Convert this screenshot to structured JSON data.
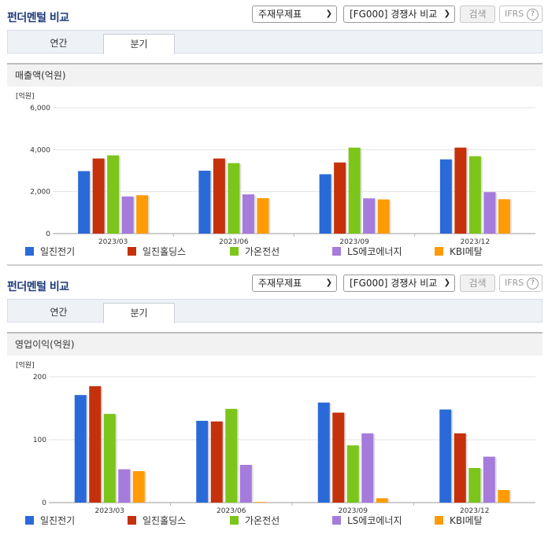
{
  "panels": [
    {
      "header": {
        "title": "펀더멘털 비교",
        "statement_select": "주재무제표",
        "group_select": "[FG000] 경쟁사 비교",
        "search_label": "검색",
        "ifrs_label": "IFRS",
        "help_label": "?"
      },
      "tabs": [
        {
          "label": "연간"
        },
        {
          "label": "분기"
        }
      ],
      "active_tab": "분기",
      "metric_title": "매출액(억원)",
      "unit_label": "[억원]",
      "chart_data": {
        "type": "bar",
        "title": "매출액(억원)",
        "categories": [
          "2023/03",
          "2023/06",
          "2023/09",
          "2023/12"
        ],
        "ylim": [
          0,
          6000
        ],
        "yticks": [
          "0",
          "2,000",
          "4,000",
          "6,000"
        ],
        "ytick_values": [
          0,
          2000,
          4000,
          6000
        ],
        "grid": true,
        "legend_position": "bottom",
        "series": [
          {
            "name": "일진전기",
            "color": "#2a6ad8",
            "values": [
              2980,
              3000,
              2830,
              3540
            ]
          },
          {
            "name": "일진홀딩스",
            "color": "#c4310b",
            "values": [
              3580,
              3580,
              3390,
              4100
            ]
          },
          {
            "name": "가온전선",
            "color": "#7cc51a",
            "values": [
              3730,
              3360,
              4100,
              3690
            ]
          },
          {
            "name": "LS에코에너지",
            "color": "#a57bdc",
            "values": [
              1770,
              1870,
              1680,
              1980
            ]
          },
          {
            "name": "KBI메탈",
            "color": "#ff9b05",
            "values": [
              1830,
              1690,
              1630,
              1640
            ]
          }
        ]
      }
    },
    {
      "header": {
        "title": "펀더멘털 비교",
        "statement_select": "주재무제표",
        "group_select": "[FG000] 경쟁사 비교",
        "search_label": "검색",
        "ifrs_label": "IFRS",
        "help_label": "?"
      },
      "tabs": [
        {
          "label": "연간"
        },
        {
          "label": "분기"
        }
      ],
      "active_tab": "분기",
      "metric_title": "영업이익(억원)",
      "unit_label": "[억원]",
      "chart_data": {
        "type": "bar",
        "title": "영업이익(억원)",
        "categories": [
          "2023/03",
          "2023/06",
          "2023/09",
          "2023/12"
        ],
        "ylim": [
          0,
          200
        ],
        "yticks": [
          "0",
          "100",
          "200"
        ],
        "ytick_values": [
          0,
          100,
          200
        ],
        "grid": true,
        "legend_position": "bottom",
        "series": [
          {
            "name": "일진전기",
            "color": "#2a6ad8",
            "values": [
              171,
              130,
              159,
              148
            ]
          },
          {
            "name": "일진홀딩스",
            "color": "#c4310b",
            "values": [
              185,
              129,
              143,
              110
            ]
          },
          {
            "name": "가온전선",
            "color": "#7cc51a",
            "values": [
              141,
              149,
              91,
              55
            ]
          },
          {
            "name": "LS에코에너지",
            "color": "#a57bdc",
            "values": [
              53,
              60,
              110,
              73
            ]
          },
          {
            "name": "KBI메탈",
            "color": "#ff9b05",
            "values": [
              50,
              1,
              7,
              20
            ]
          }
        ]
      }
    }
  ]
}
